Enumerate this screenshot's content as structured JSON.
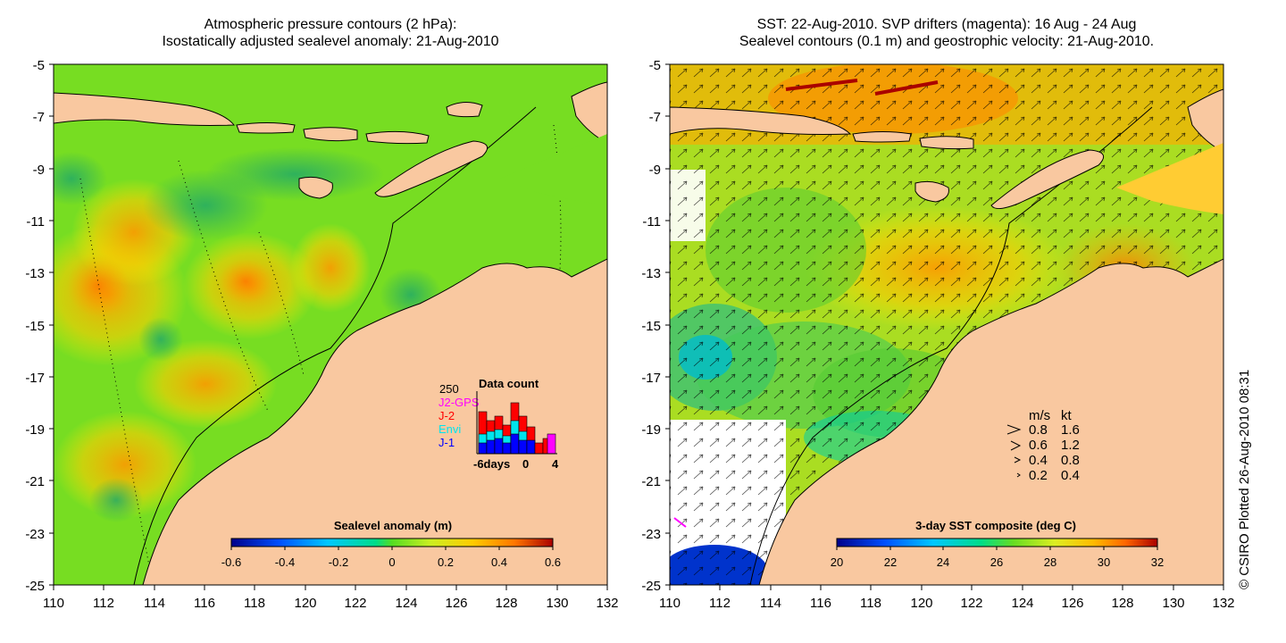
{
  "left_panel": {
    "title_line1": "Atmospheric pressure contours (2 hPa):",
    "title_line2": "Isostatically adjusted sealevel anomaly: 21-Aug-2010",
    "colorbar": {
      "label": "Sealevel anomaly (m)",
      "ticks": [
        "-0.6",
        "-0.4",
        "-0.2",
        "0",
        "0.2",
        "0.4",
        "0.6"
      ]
    },
    "data_count": {
      "title": "Data count",
      "ymax_label": "250",
      "legend": [
        {
          "label": "J2-GPS",
          "color": "#ff00ff"
        },
        {
          "label": "J-2",
          "color": "#ff0000"
        },
        {
          "label": "Envi",
          "color": "#00e5ee"
        },
        {
          "label": "J-1",
          "color": "#0000ff"
        }
      ],
      "x_ticks": [
        "-6days",
        "0",
        "4"
      ]
    }
  },
  "right_panel": {
    "title_line1": "SST: 22-Aug-2010. SVP drifters (magenta): 16 Aug - 24 Aug",
    "title_line2": "Sealevel contours (0.1 m) and geostrophic velocity: 21-Aug-2010.",
    "colorbar": {
      "label": "3-day SST composite (deg C)",
      "ticks": [
        "20",
        "22",
        "24",
        "26",
        "28",
        "30",
        "32"
      ]
    },
    "speed_legend": {
      "header_ms": "m/s",
      "header_kt": "kt",
      "rows": [
        {
          "ms": "0.8",
          "kt": "1.6"
        },
        {
          "ms": "0.6",
          "kt": "1.2"
        },
        {
          "ms": "0.4",
          "kt": "0.8"
        },
        {
          "ms": "0.2",
          "kt": "0.4"
        }
      ]
    }
  },
  "axes": {
    "lat_ticks": [
      "-5",
      "-7",
      "-9",
      "-11",
      "-13",
      "-15",
      "-17",
      "-19",
      "-21",
      "-23",
      "-25"
    ],
    "lon_ticks": [
      "110",
      "112",
      "114",
      "116",
      "118",
      "120",
      "122",
      "124",
      "126",
      "128",
      "130",
      "132"
    ]
  },
  "copyright": "© CSIRO Plotted 26-Aug-2010 08:31",
  "colors": {
    "land": "#f9c8a0",
    "sla_neutral": "#66dd22",
    "sst_mid": "#88dd22"
  }
}
